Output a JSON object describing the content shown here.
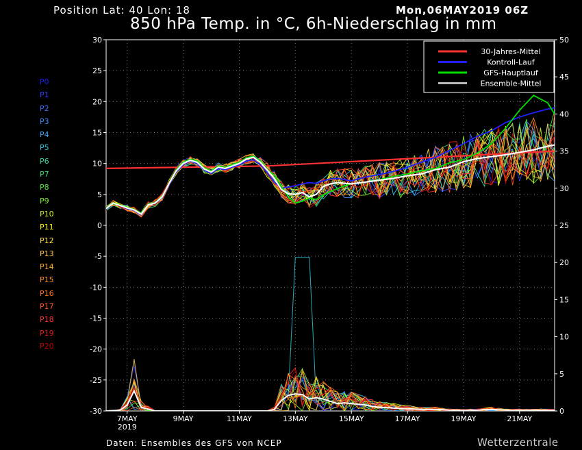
{
  "header": {
    "position": "Position   Lat: 40 Lon: 18",
    "date": "Mon,06MAY2019 06Z",
    "title": "850 hPa Temp. in °C, 6h-Niederschlag in mm"
  },
  "footer": {
    "source": "Daten: Ensembles des GFS von NCEP",
    "brand": "Wetterzentrale"
  },
  "members": [
    {
      "label": "P0",
      "color": "#1a1aff"
    },
    {
      "label": "P1",
      "color": "#2f3dff"
    },
    {
      "label": "P2",
      "color": "#3a6bff"
    },
    {
      "label": "P3",
      "color": "#3a8cff"
    },
    {
      "label": "P4",
      "color": "#39a8ff"
    },
    {
      "label": "P5",
      "color": "#34c8e0"
    },
    {
      "label": "P6",
      "color": "#32d6a0"
    },
    {
      "label": "P7",
      "color": "#2ee070"
    },
    {
      "label": "P8",
      "color": "#4ee83a"
    },
    {
      "label": "P9",
      "color": "#82f02c"
    },
    {
      "label": "P10",
      "color": "#c8f020"
    },
    {
      "label": "P11",
      "color": "#ffff00"
    },
    {
      "label": "P12",
      "color": "#ffe040"
    },
    {
      "label": "P13",
      "color": "#ffc840"
    },
    {
      "label": "P14",
      "color": "#ffaa20"
    },
    {
      "label": "P15",
      "color": "#ff9020"
    },
    {
      "label": "P16",
      "color": "#ff7020"
    },
    {
      "label": "P17",
      "color": "#ff5028"
    },
    {
      "label": "P18",
      "color": "#ff3030"
    },
    {
      "label": "P19",
      "color": "#e81818"
    },
    {
      "label": "P20",
      "color": "#c00000"
    }
  ],
  "chart_data": {
    "type": "line",
    "title": "850 hPa Temp. in °C, 6h-Niederschlag in mm",
    "x_ticks": [
      "7MAY",
      "9MAY",
      "11MAY",
      "13MAY",
      "15MAY",
      "17MAY",
      "19MAY",
      "21MAY"
    ],
    "x_sublabel": "2019",
    "x_range_days": [
      6.25,
      22.25
    ],
    "y_left": {
      "label": "850 hPa Temp. in °C",
      "ticks": [
        30,
        25,
        20,
        15,
        10,
        5,
        0,
        -5,
        -10,
        -15,
        -20,
        -25,
        -30
      ],
      "ylim": [
        -30,
        30
      ]
    },
    "y_right": {
      "label": "6h-Niederschlag in mm",
      "ticks": [
        50,
        45,
        40,
        35,
        30,
        25,
        20,
        15,
        10,
        5,
        0
      ],
      "ylim": [
        0,
        50
      ]
    },
    "grid": true,
    "legend_position": "top-right",
    "legend": [
      {
        "label": "30-Jahres-Mittel",
        "color": "#ff3030"
      },
      {
        "label": "Kontroll-Lauf",
        "color": "#2020ff"
      },
      {
        "label": "GFS-Hauptlauf",
        "color": "#00e000"
      },
      {
        "label": "Ensemble-Mittel",
        "color": "#bbbbbb"
      }
    ],
    "temp_days": [
      6.25,
      6.5,
      7.0,
      7.25,
      7.5,
      7.75,
      8.0,
      8.25,
      8.5,
      8.75,
      9.0,
      9.25,
      9.5,
      9.75,
      10.0,
      10.25,
      10.5,
      10.75,
      11.0,
      11.25,
      11.5,
      11.75,
      12.0,
      12.25,
      12.5,
      12.75,
      13.0,
      13.25,
      13.5,
      13.75,
      14.0,
      14.25,
      14.5,
      14.75,
      15.0,
      15.5,
      16.0,
      16.5,
      17.0,
      17.5,
      18.0,
      18.5,
      19.0,
      19.5,
      20.0,
      20.5,
      21.0,
      21.5,
      22.0,
      22.25
    ],
    "ensemble_mean": [
      2.7,
      3.6,
      2.8,
      2.5,
      1.8,
      3.3,
      3.6,
      4.6,
      6.8,
      8.8,
      10.0,
      10.5,
      10.2,
      9.1,
      8.6,
      9.4,
      9.2,
      9.6,
      10.0,
      10.7,
      11.0,
      10.2,
      8.9,
      7.6,
      5.8,
      5.1,
      5.0,
      5.3,
      4.6,
      5.0,
      6.3,
      6.7,
      6.9,
      6.8,
      6.7,
      7.0,
      7.3,
      7.6,
      8.0,
      8.3,
      9.0,
      9.4,
      10.3,
      10.8,
      11.1,
      11.4,
      11.8,
      12.2,
      12.8,
      13.0
    ],
    "control_run": [
      2.6,
      3.6,
      2.7,
      2.4,
      1.7,
      3.4,
      3.5,
      4.5,
      6.6,
      8.6,
      9.8,
      10.4,
      10.0,
      8.9,
      8.4,
      9.2,
      9.0,
      9.4,
      9.8,
      10.4,
      10.6,
      9.8,
      8.5,
      7.0,
      6.0,
      6.2,
      6.4,
      6.7,
      6.9,
      6.8,
      7.2,
      7.5,
      7.6,
      7.4,
      7.2,
      7.8,
      8.2,
      8.7,
      9.4,
      10.2,
      11.0,
      12.1,
      13.2,
      14.4,
      15.3,
      16.6,
      17.5,
      18.2,
      18.8,
      19.0
    ],
    "main_run": [
      2.8,
      3.7,
      2.9,
      2.6,
      1.9,
      3.4,
      3.7,
      4.7,
      6.9,
      9.0,
      10.2,
      10.7,
      10.4,
      9.3,
      8.8,
      9.6,
      9.4,
      9.8,
      10.2,
      10.9,
      11.2,
      10.4,
      9.0,
      8.1,
      6.3,
      4.6,
      3.6,
      3.9,
      4.4,
      4.2,
      4.9,
      5.5,
      5.9,
      6.4,
      6.7,
      7.0,
      7.4,
      7.9,
      8.3,
      8.8,
      9.2,
      10.1,
      10.6,
      11.7,
      13.2,
      15.7,
      18.6,
      21.0,
      19.8,
      18.0
    ],
    "climatology": {
      "days": [
        6.25,
        12.0,
        22.25
      ],
      "values": [
        9.2,
        9.6,
        12.0
      ]
    },
    "precip_days": [
      6.25,
      6.75,
      7.0,
      7.25,
      7.5,
      8.0,
      9.0,
      10.0,
      11.0,
      12.0,
      12.25,
      12.5,
      12.75,
      13.0,
      13.25,
      13.5,
      13.75,
      14.0,
      14.25,
      14.5,
      14.75,
      15.0,
      15.25,
      15.5,
      15.75,
      16.0,
      16.5,
      17.0,
      17.5,
      18.0,
      18.5,
      19.0,
      19.5,
      20.0,
      20.5,
      21.0,
      21.5,
      22.0,
      22.25
    ],
    "precip_mean": [
      0.0,
      0.1,
      0.8,
      2.7,
      0.5,
      0.0,
      0.0,
      0.0,
      0.0,
      0.0,
      0.2,
      1.4,
      2.1,
      2.3,
      2.2,
      1.6,
      1.8,
      1.6,
      1.3,
      1.0,
      1.1,
      1.0,
      0.9,
      0.8,
      0.6,
      0.5,
      0.4,
      0.3,
      0.2,
      0.2,
      0.1,
      0.1,
      0.1,
      0.2,
      0.1,
      0.1,
      0.1,
      0.1,
      0.1
    ],
    "precip_peak_max": 20.7,
    "precip_peak_max_day": 13.5
  }
}
